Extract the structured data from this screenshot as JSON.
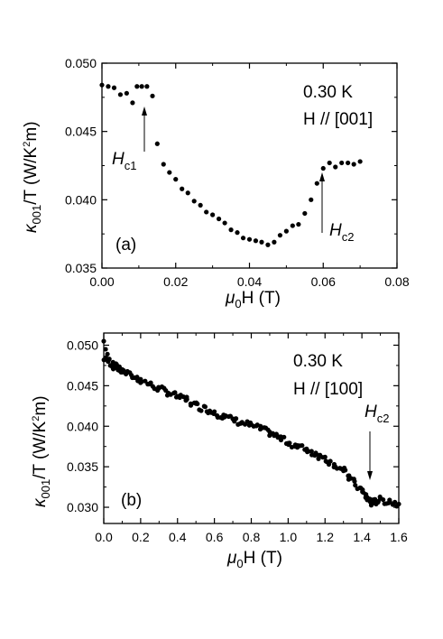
{
  "chart_data": [
    {
      "type": "scatter",
      "panel_label": "(a)",
      "xlabel": {
        "main": "μ",
        "sub": "0",
        "rest": "H (T)"
      },
      "ylabel": {
        "kappa": "κ",
        "sub": "001",
        "mid": "/T (W/K",
        "sup": "2",
        "end": "m)"
      },
      "xlim": [
        0.0,
        0.08
      ],
      "ylim": [
        0.035,
        0.05
      ],
      "xticks": [
        "0.00",
        "0.02",
        "0.04",
        "0.06",
        "0.08"
      ],
      "yticks": [
        "0.035",
        "0.040",
        "0.045",
        "0.050"
      ],
      "grid": false,
      "annotations": [
        {
          "type": "text",
          "text": "0.30 K"
        },
        {
          "type": "text",
          "text": "H // [001]"
        },
        {
          "type": "arrow-label",
          "main": "H",
          "sub": "c1",
          "x": 0.0113,
          "y": 0.0452
        },
        {
          "type": "arrow-label",
          "main": "H",
          "sub": "c2",
          "x": 0.0595,
          "y": 0.0371
        }
      ],
      "x": [
        0.0,
        0.0017,
        0.0033,
        0.005,
        0.0067,
        0.0083,
        0.0095,
        0.0108,
        0.0122,
        0.0137,
        0.015,
        0.0167,
        0.0183,
        0.02,
        0.0217,
        0.0233,
        0.025,
        0.0267,
        0.0283,
        0.03,
        0.0317,
        0.0333,
        0.035,
        0.0367,
        0.0383,
        0.04,
        0.0417,
        0.0433,
        0.045,
        0.0467,
        0.0483,
        0.05,
        0.0517,
        0.0533,
        0.055,
        0.0567,
        0.0583,
        0.06,
        0.0617,
        0.0633,
        0.065,
        0.0667,
        0.0683,
        0.07
      ],
      "y": [
        0.0484,
        0.0483,
        0.0482,
        0.0477,
        0.0478,
        0.0471,
        0.0483,
        0.0483,
        0.0483,
        0.0476,
        0.0441,
        0.0426,
        0.042,
        0.0415,
        0.0408,
        0.0405,
        0.0399,
        0.0396,
        0.0391,
        0.0389,
        0.0386,
        0.0383,
        0.0378,
        0.0376,
        0.0372,
        0.0371,
        0.037,
        0.0369,
        0.0367,
        0.0369,
        0.0374,
        0.0377,
        0.0381,
        0.0382,
        0.039,
        0.04,
        0.0412,
        0.0423,
        0.0427,
        0.0424,
        0.0427,
        0.0427,
        0.0426,
        0.0428
      ]
    },
    {
      "type": "scatter",
      "panel_label": "(b)",
      "xlabel": {
        "main": "μ",
        "sub": "0",
        "rest": "H (T)"
      },
      "ylabel": {
        "kappa": "κ",
        "sub": "001",
        "mid": "/T (W/K",
        "sup": "2",
        "end": "m)"
      },
      "xlim": [
        0.0,
        1.6
      ],
      "ylim": [
        0.028,
        0.0515
      ],
      "xticks": [
        "0.0",
        "0.2",
        "0.4",
        "0.6",
        "0.8",
        "1.0",
        "1.2",
        "1.4",
        "1.6"
      ],
      "yticks": [
        "0.030",
        "0.035",
        "0.040",
        "0.045",
        "0.050"
      ],
      "grid": false,
      "annotations": [
        {
          "type": "text",
          "text": "0.30 K"
        },
        {
          "type": "text",
          "text": "H // [100]"
        },
        {
          "type": "arrow-label",
          "main": "H",
          "sub": "c2",
          "x": 1.44,
          "y": 0.0313
        }
      ],
      "x": [
        0.0,
        0.01,
        0.02,
        0.03,
        0.05,
        0.07,
        0.1,
        0.15,
        0.2,
        0.25,
        0.3,
        0.35,
        0.4,
        0.45,
        0.5,
        0.55,
        0.6,
        0.65,
        0.7,
        0.75,
        0.8,
        0.85,
        0.9,
        0.95,
        1.0,
        1.05,
        1.1,
        1.15,
        1.2,
        1.25,
        1.3,
        1.33,
        1.36,
        1.39,
        1.42,
        1.44,
        1.46,
        1.48,
        1.5,
        1.55,
        1.6
      ],
      "y": [
        0.0505,
        0.0495,
        0.0489,
        0.0483,
        0.0479,
        0.0476,
        0.047,
        0.0463,
        0.0458,
        0.0452,
        0.0447,
        0.0441,
        0.0437,
        0.0436,
        0.0428,
        0.0424,
        0.0418,
        0.0414,
        0.0409,
        0.0404,
        0.0402,
        0.04,
        0.0393,
        0.0387,
        0.0379,
        0.0374,
        0.0372,
        0.0367,
        0.0362,
        0.0353,
        0.0345,
        0.0339,
        0.0332,
        0.0324,
        0.0316,
        0.0309,
        0.0305,
        0.0307,
        0.0311,
        0.0309,
        0.0304
      ],
      "band": {
        "x": [
          0.0,
          0.05,
          0.1,
          0.2,
          0.3,
          0.4,
          0.5,
          0.6,
          0.7,
          0.8,
          0.9,
          1.0,
          1.1,
          1.2,
          1.3,
          1.4,
          1.45,
          1.5,
          1.6
        ],
        "y": [
          0.0485,
          0.0475,
          0.0468,
          0.0457,
          0.0446,
          0.0437,
          0.0426,
          0.0417,
          0.0408,
          0.0401,
          0.0392,
          0.038,
          0.0371,
          0.036,
          0.0345,
          0.032,
          0.0305,
          0.0309,
          0.0304
        ]
      }
    }
  ]
}
